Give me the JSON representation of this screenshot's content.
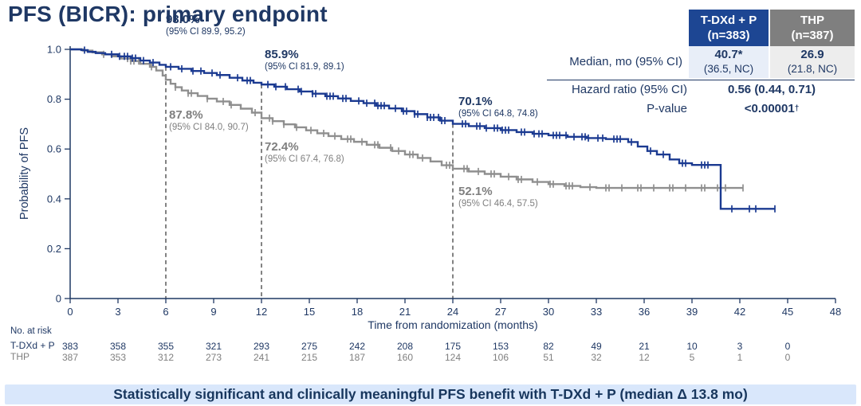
{
  "slide": {
    "title": "PFS (BICR): primary endpoint",
    "banner": "Statistically significant and clinically meaningful PFS benefit with T-DXd + P (median Δ 13.8 mo)"
  },
  "colors": {
    "navy": "#1f3864",
    "curve_blue": "#1b3a91",
    "curve_gray": "#8f8f8f",
    "header_blue": "#1d4693",
    "header_gray": "#7f7f7f",
    "cell_blue": "#e8eef8",
    "cell_gray": "#ededed",
    "banner_bg": "#d9e7fb",
    "banner_text": "#17365d",
    "dashed": "#404040"
  },
  "stats_table": {
    "col1_header_line1": "T-DXd + P",
    "col1_header_line2": "(n=383)",
    "col2_header_line1": "THP",
    "col2_header_line2": "(n=387)",
    "median_label": "Median, mo (95% CI)",
    "median_tdxd_main": "40.7*",
    "median_tdxd_ci": "(36.5, NC)",
    "median_thp_main": "26.9",
    "median_thp_ci": "(21.8, NC)",
    "hr_label": "Hazard ratio (95% CI)",
    "hr_value": "0.56 (0.44, 0.71)",
    "p_label": "P-value",
    "p_value": "<0.00001",
    "p_sup": "†"
  },
  "chart_data": {
    "type": "line",
    "subtype": "kaplan-meier-step",
    "xlabel": "Time from randomization (months)",
    "ylabel": "Probability of PFS",
    "xlim": [
      0,
      48
    ],
    "ylim": [
      0,
      1.0
    ],
    "xticks": [
      0,
      3,
      6,
      9,
      12,
      15,
      18,
      21,
      24,
      27,
      30,
      33,
      36,
      39,
      42,
      45,
      48
    ],
    "yticks": [
      0,
      0.2,
      0.4,
      0.6,
      0.8,
      1.0
    ],
    "ytick_labels": [
      "0",
      "0.2",
      "0.4",
      "0.6",
      "0.8",
      "1.0"
    ],
    "grid": false,
    "legend_position": "none",
    "dashed_lines_at_months": [
      6,
      12,
      24
    ],
    "series": [
      {
        "name": "T-DXd + P",
        "color": "#1b3a91",
        "steps": [
          [
            0,
            1.0
          ],
          [
            0.7,
            0.997
          ],
          [
            1.1,
            0.99
          ],
          [
            1.6,
            0.985
          ],
          [
            2.2,
            0.98
          ],
          [
            3.0,
            0.972
          ],
          [
            3.8,
            0.965
          ],
          [
            4.4,
            0.955
          ],
          [
            5.0,
            0.947
          ],
          [
            5.6,
            0.938
          ],
          [
            6.0,
            0.93
          ],
          [
            6.8,
            0.922
          ],
          [
            7.6,
            0.913
          ],
          [
            8.4,
            0.905
          ],
          [
            9.2,
            0.897
          ],
          [
            10.0,
            0.886
          ],
          [
            10.8,
            0.875
          ],
          [
            11.5,
            0.866
          ],
          [
            12.0,
            0.859
          ],
          [
            12.8,
            0.85
          ],
          [
            13.6,
            0.84
          ],
          [
            14.4,
            0.831
          ],
          [
            15.2,
            0.822
          ],
          [
            16.0,
            0.812
          ],
          [
            16.8,
            0.803
          ],
          [
            17.6,
            0.793
          ],
          [
            18.4,
            0.784
          ],
          [
            19.2,
            0.774
          ],
          [
            20.0,
            0.763
          ],
          [
            20.8,
            0.752
          ],
          [
            21.6,
            0.74
          ],
          [
            22.4,
            0.727
          ],
          [
            23.2,
            0.714
          ],
          [
            24.0,
            0.701
          ],
          [
            25.0,
            0.692
          ],
          [
            26.0,
            0.684
          ],
          [
            27.0,
            0.676
          ],
          [
            28.0,
            0.668
          ],
          [
            29.0,
            0.661
          ],
          [
            30.0,
            0.655
          ],
          [
            31.2,
            0.649
          ],
          [
            32.4,
            0.644
          ],
          [
            33.6,
            0.64
          ],
          [
            35.0,
            0.628
          ],
          [
            35.6,
            0.61
          ],
          [
            36.2,
            0.592
          ],
          [
            36.8,
            0.578
          ],
          [
            37.6,
            0.558
          ],
          [
            38.2,
            0.543
          ],
          [
            39.0,
            0.536
          ],
          [
            40.8,
            0.36
          ],
          [
            44.2,
            0.36
          ]
        ],
        "censor_marks": [
          0.9,
          2.6,
          3.1,
          3.4,
          3.6,
          3.9,
          4.1,
          4.6,
          5.2,
          6.3,
          7.0,
          7.7,
          8.2,
          8.9,
          9.4,
          10.5,
          11.1,
          11.3,
          12.4,
          12.9,
          13.5,
          14.3,
          14.5,
          15.2,
          15.4,
          16.1,
          16.3,
          16.5,
          17.1,
          17.3,
          18.1,
          18.6,
          19.1,
          19.3,
          19.5,
          19.7,
          20.4,
          20.9,
          21.1,
          21.6,
          21.8,
          22.4,
          22.6,
          22.8,
          23.1,
          23.3,
          23.5,
          24.6,
          24.8,
          25.5,
          25.7,
          26.1,
          26.6,
          26.8,
          27.1,
          27.3,
          27.5,
          28.3,
          28.5,
          29.1,
          29.4,
          29.6,
          30.3,
          30.5,
          30.7,
          31.1,
          31.6,
          32.1,
          32.3,
          32.5,
          33.1,
          33.4,
          34.1,
          34.3,
          34.5,
          35.2,
          36.4,
          37.2,
          38.4,
          38.6,
          39.6,
          39.8,
          40.0,
          41.5,
          42.6,
          43.0,
          44.2
        ]
      },
      {
        "name": "THP",
        "color": "#8f8f8f",
        "steps": [
          [
            0,
            1.0
          ],
          [
            0.8,
            0.995
          ],
          [
            1.4,
            0.988
          ],
          [
            2.0,
            0.98
          ],
          [
            2.6,
            0.972
          ],
          [
            3.2,
            0.963
          ],
          [
            3.8,
            0.953
          ],
          [
            4.4,
            0.942
          ],
          [
            5.0,
            0.93
          ],
          [
            5.4,
            0.915
          ],
          [
            5.8,
            0.895
          ],
          [
            6.0,
            0.878
          ],
          [
            6.3,
            0.862
          ],
          [
            6.6,
            0.848
          ],
          [
            7.0,
            0.835
          ],
          [
            7.4,
            0.824
          ],
          [
            8.0,
            0.813
          ],
          [
            8.6,
            0.802
          ],
          [
            9.2,
            0.791
          ],
          [
            10.0,
            0.777
          ],
          [
            10.7,
            0.762
          ],
          [
            11.4,
            0.746
          ],
          [
            12.0,
            0.724
          ],
          [
            12.7,
            0.712
          ],
          [
            13.4,
            0.699
          ],
          [
            14.1,
            0.687
          ],
          [
            14.8,
            0.675
          ],
          [
            15.5,
            0.663
          ],
          [
            16.2,
            0.652
          ],
          [
            17.0,
            0.64
          ],
          [
            17.8,
            0.629
          ],
          [
            18.6,
            0.617
          ],
          [
            19.4,
            0.605
          ],
          [
            20.2,
            0.592
          ],
          [
            21.0,
            0.578
          ],
          [
            21.8,
            0.564
          ],
          [
            22.6,
            0.55
          ],
          [
            23.3,
            0.535
          ],
          [
            24.0,
            0.521
          ],
          [
            25.0,
            0.51
          ],
          [
            26.0,
            0.5
          ],
          [
            27.0,
            0.489
          ],
          [
            28.0,
            0.478
          ],
          [
            29.0,
            0.468
          ],
          [
            30.0,
            0.459
          ],
          [
            31.0,
            0.452
          ],
          [
            32.0,
            0.447
          ],
          [
            33.0,
            0.444
          ],
          [
            42.2,
            0.444
          ]
        ],
        "censor_marks": [
          2.1,
          3.6,
          3.8,
          4.0,
          4.3,
          5.1,
          6.6,
          7.4,
          7.6,
          8.6,
          9.6,
          10.1,
          11.6,
          12.5,
          12.7,
          13.4,
          14.2,
          15.1,
          15.9,
          16.6,
          17.4,
          17.6,
          18.3,
          19.1,
          19.3,
          20.1,
          20.6,
          21.3,
          21.5,
          22.1,
          23.6,
          23.8,
          24.7,
          24.9,
          25.6,
          26.4,
          26.6,
          27.5,
          28.1,
          28.3,
          29.3,
          30.1,
          30.3,
          31.1,
          31.3,
          31.5,
          32.6,
          33.6,
          33.8,
          34.6,
          35.6,
          35.8,
          36.6,
          37.6,
          37.8,
          38.6,
          39.6,
          39.8,
          40.6,
          41.1,
          42.2
        ]
      }
    ],
    "annotations": [
      {
        "series": "T-DXd + P",
        "month": 6,
        "pct": "93.0%",
        "ci": "(95% CI 89.9, 95.2)"
      },
      {
        "series": "T-DXd + P",
        "month": 12,
        "pct": "85.9%",
        "ci": "(95% CI 81.9, 89.1)"
      },
      {
        "series": "THP",
        "month": 6,
        "pct": "87.8%",
        "ci": "(95% CI 84.0, 90.7)"
      },
      {
        "series": "THP",
        "month": 12,
        "pct": "72.4%",
        "ci": "(95% CI 67.4, 76.8)"
      },
      {
        "series": "T-DXd + P",
        "month": 24,
        "pct": "70.1%",
        "ci": "(95% CI 64.8, 74.8)"
      },
      {
        "series": "THP",
        "month": 24,
        "pct": "52.1%",
        "ci": "(95% CI 46.4, 57.5)"
      }
    ],
    "at_risk": {
      "label": "No. at risk",
      "months": [
        0,
        3,
        6,
        9,
        12,
        15,
        18,
        21,
        24,
        27,
        30,
        33,
        36,
        39,
        42,
        45
      ],
      "rows": [
        {
          "name": "T-DXd + P",
          "color": "#1f3864",
          "values": [
            383,
            358,
            355,
            321,
            293,
            275,
            242,
            208,
            175,
            153,
            82,
            49,
            21,
            10,
            3,
            0
          ]
        },
        {
          "name": "THP",
          "color": "#7f7f7f",
          "values": [
            387,
            353,
            312,
            273,
            241,
            215,
            187,
            160,
            124,
            106,
            51,
            32,
            12,
            5,
            1,
            0
          ]
        }
      ]
    }
  }
}
